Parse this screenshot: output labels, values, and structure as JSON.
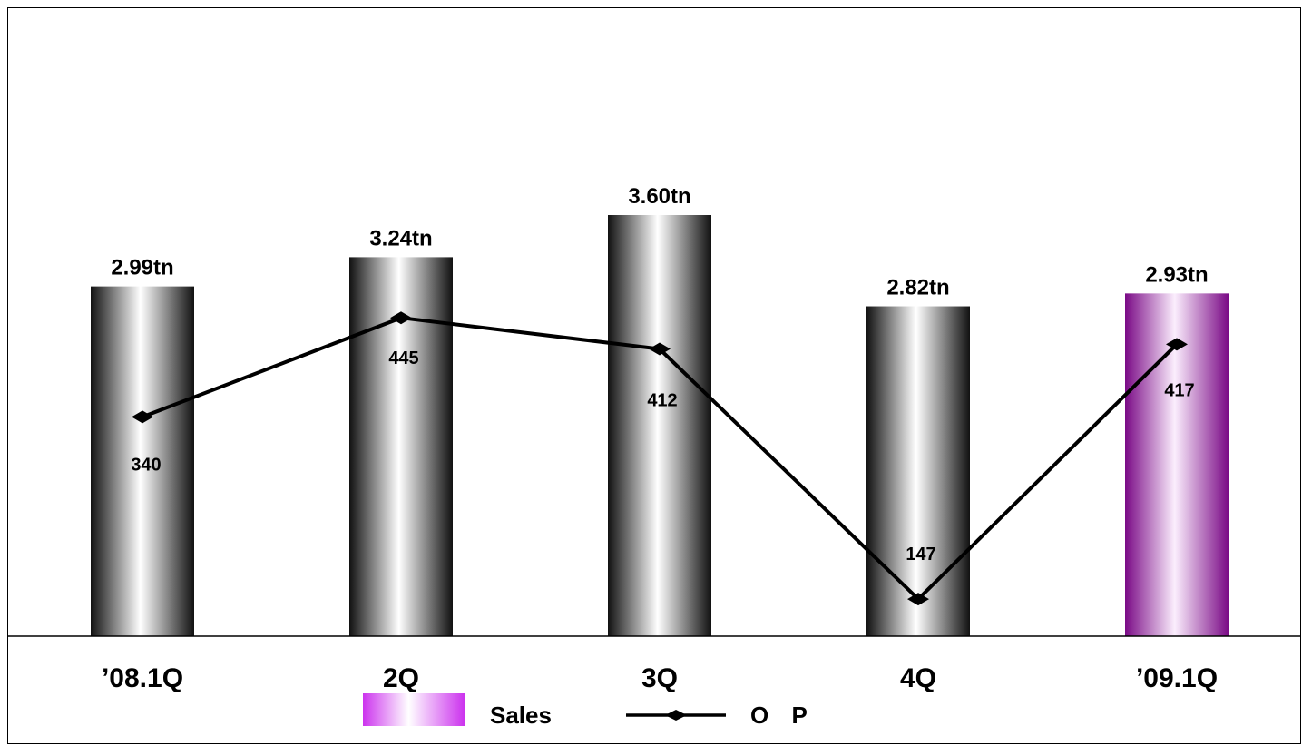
{
  "chart_data": {
    "type": "bar",
    "categories": [
      "’08.1Q",
      "2Q",
      "3Q",
      "4Q",
      "’09.1Q"
    ],
    "series": [
      {
        "name": "Sales",
        "type": "bar",
        "values": [
          2.99,
          3.24,
          3.6,
          2.82,
          2.93
        ],
        "labels": [
          "2.99tn",
          "3.24tn",
          "3.60tn",
          "2.82tn",
          "2.93tn"
        ]
      },
      {
        "name": "O P",
        "type": "line",
        "values": [
          340,
          445,
          412,
          147,
          417
        ],
        "labels": [
          "340",
          "445",
          "412",
          "147",
          "417"
        ]
      }
    ],
    "legend": "bottom-center",
    "grid": false,
    "colors": {
      "bar_dark": "#1a1a1a",
      "bar_light": "#ffffff",
      "highlight_dark": "#7a0a86",
      "highlight_light": "#fbeefd",
      "legend_swatch": "#cc44ee",
      "line": "#000000"
    },
    "highlight_index": 4
  }
}
